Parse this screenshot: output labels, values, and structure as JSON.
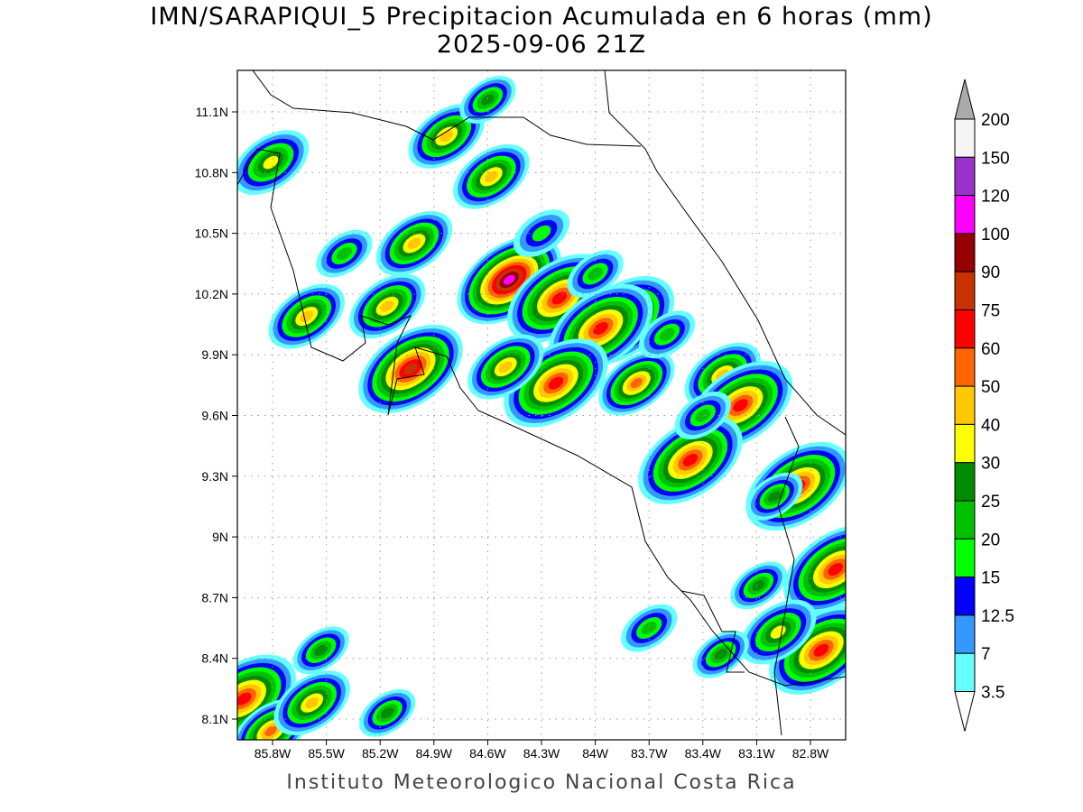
{
  "title": "IMN/SARAPIQUI_5 Precipitacion Acumulada en 6 horas (mm)",
  "subtitle": "2025-09-06 21Z",
  "footer": "Instituto Meteorologico Nacional Costa Rica",
  "chart_data": {
    "type": "heatmap",
    "variable": "6-hour accumulated precipitation (mm)",
    "x_ticks": [
      "85.8W",
      "85.5W",
      "85.2W",
      "84.9W",
      "84.6W",
      "84.3W",
      "84W",
      "83.7W",
      "83.4W",
      "83.1W",
      "82.8W"
    ],
    "y_ticks": [
      "11.1N",
      "10.8N",
      "10.5N",
      "10.2N",
      "9.9N",
      "9.6N",
      "9.3N",
      "9N",
      "8.7N",
      "8.4N",
      "8.1N"
    ],
    "lon_range": [
      -86.0,
      -82.6
    ],
    "lat_range": [
      8.0,
      11.3
    ],
    "grid": "dotted",
    "colorbar": {
      "placement": "right",
      "levels": [
        "3.5",
        "7",
        "12.5",
        "15",
        "20",
        "25",
        "30",
        "40",
        "50",
        "60",
        "75",
        "90",
        "100",
        "120",
        "150",
        "200"
      ],
      "colors": [
        "#ffffff",
        "#66ffff",
        "#3399ff",
        "#0000ff",
        "#00ff00",
        "#00c000",
        "#008c00",
        "#ffff00",
        "#ffc800",
        "#ff6400",
        "#ff0000",
        "#c83200",
        "#960000",
        "#ff00ff",
        "#9933cc",
        "#f5f5f5",
        "#aaaaaa"
      ]
    },
    "cells": [
      {
        "lon": -84.48,
        "lat": 10.27,
        "peak": 100
      },
      {
        "lon": -84.2,
        "lat": 10.18,
        "peak": 60
      },
      {
        "lon": -83.85,
        "lat": 10.07,
        "peak": 60
      },
      {
        "lon": -83.97,
        "lat": 10.03,
        "peak": 60
      },
      {
        "lon": -84.58,
        "lat": 10.78,
        "peak": 40
      },
      {
        "lon": -85.03,
        "lat": 9.83,
        "peak": 75
      },
      {
        "lon": -83.29,
        "lat": 9.8,
        "peak": 40
      },
      {
        "lon": -83.19,
        "lat": 9.65,
        "peak": 60
      },
      {
        "lon": -83.47,
        "lat": 9.38,
        "peak": 60
      },
      {
        "lon": -82.87,
        "lat": 9.25,
        "peak": 60
      },
      {
        "lon": -82.66,
        "lat": 8.84,
        "peak": 60
      },
      {
        "lon": -82.74,
        "lat": 8.44,
        "peak": 60
      },
      {
        "lon": -85.96,
        "lat": 8.2,
        "peak": 60
      },
      {
        "lon": -85.81,
        "lat": 8.04,
        "peak": 50
      },
      {
        "lon": -85.58,
        "lat": 8.18,
        "peak": 40
      },
      {
        "lon": -85.61,
        "lat": 10.09,
        "peak": 40
      },
      {
        "lon": -85.16,
        "lat": 10.14,
        "peak": 40
      },
      {
        "lon": -85.01,
        "lat": 10.45,
        "peak": 40
      },
      {
        "lon": -85.81,
        "lat": 10.85,
        "peak": 30
      },
      {
        "lon": -85.53,
        "lat": 8.44,
        "peak": 25
      },
      {
        "lon": -85.16,
        "lat": 8.13,
        "peak": 25
      },
      {
        "lon": -84.22,
        "lat": 9.76,
        "peak": 60
      },
      {
        "lon": -83.77,
        "lat": 9.76,
        "peak": 50
      },
      {
        "lon": -84.5,
        "lat": 9.84,
        "peak": 40
      },
      {
        "lon": -84.83,
        "lat": 10.98,
        "peak": 40
      },
      {
        "lon": -84.6,
        "lat": 11.16,
        "peak": 25
      },
      {
        "lon": -82.98,
        "lat": 8.53,
        "peak": 30
      },
      {
        "lon": -83.3,
        "lat": 8.42,
        "peak": 25
      },
      {
        "lon": -83.7,
        "lat": 8.55,
        "peak": 20
      },
      {
        "lon": -83.09,
        "lat": 8.76,
        "peak": 25
      },
      {
        "lon": -84.0,
        "lat": 10.3,
        "peak": 20
      },
      {
        "lon": -83.6,
        "lat": 10.0,
        "peak": 20
      },
      {
        "lon": -83.4,
        "lat": 9.6,
        "peak": 20
      },
      {
        "lon": -83.0,
        "lat": 9.2,
        "peak": 25
      },
      {
        "lon": -85.4,
        "lat": 10.4,
        "peak": 20
      },
      {
        "lon": -84.3,
        "lat": 10.5,
        "peak": 15
      }
    ]
  }
}
